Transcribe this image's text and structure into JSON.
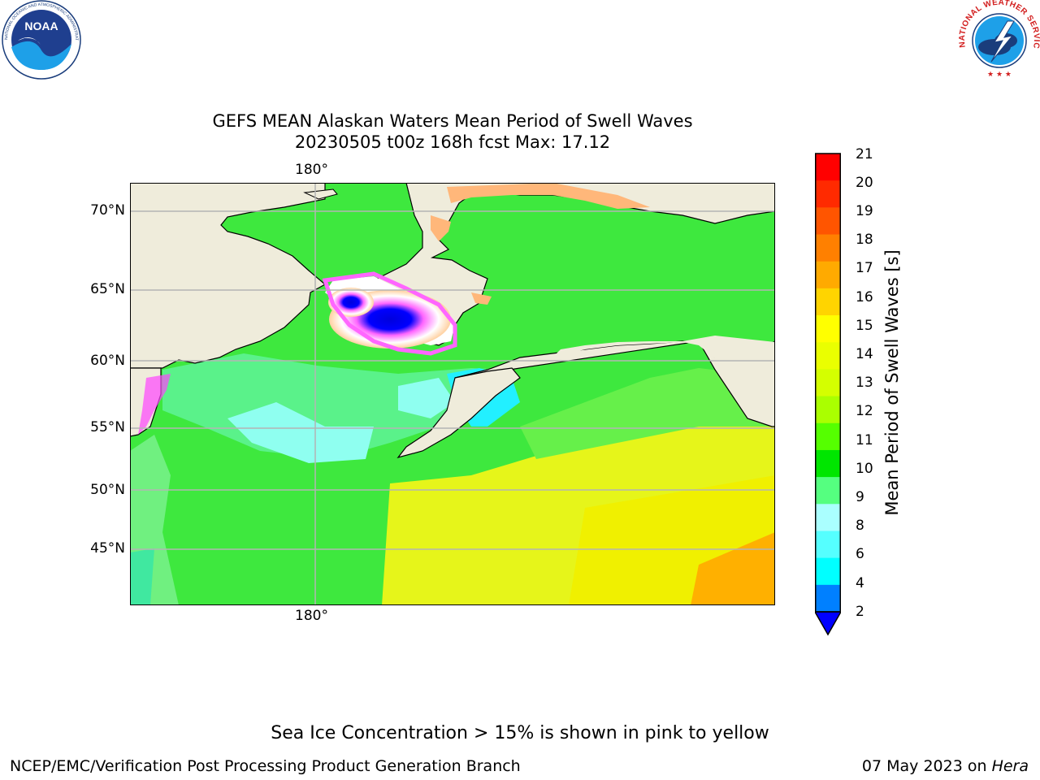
{
  "logos": {
    "noaa_text": "NOAA",
    "noaa_ring": "NATIONAL OCEANIC AND ATMOSPHERIC ADMINISTRATION · U.S. DEPARTMENT OF COMMERCE",
    "nws_ring": "NATIONAL WEATHER SERVICE"
  },
  "title": {
    "line1": "GEFS MEAN Alaskan Waters Mean Period of Swell Waves",
    "line2": "20230505 t00z 168h fcst   Max: 17.12"
  },
  "map": {
    "lon_label_top": "180°",
    "lon_label_bottom": "180°",
    "lat_labels": [
      "70°N",
      "65°N",
      "60°N",
      "55°N",
      "50°N",
      "45°N"
    ],
    "land_color": "#efecdb",
    "grid_color": "#b4b4b4"
  },
  "colorbar": {
    "label": "Mean Period of Swell Waves [s]",
    "ticks": [
      "21",
      "20",
      "19",
      "18",
      "17",
      "16",
      "15",
      "14",
      "13",
      "12",
      "11",
      "10",
      "9",
      "8",
      "6",
      "4",
      "2"
    ],
    "colors": [
      "#ff0000",
      "#ff2a00",
      "#ff5500",
      "#ff8000",
      "#ffaa00",
      "#ffd400",
      "#ffff00",
      "#eaff00",
      "#d4ff00",
      "#aaff00",
      "#55ff00",
      "#00e600",
      "#55ff80",
      "#aaffff",
      "#55ffff",
      "#00ffff",
      "#0080ff"
    ],
    "under_color": "#0000ff"
  },
  "notes": {
    "sea_ice": "Sea Ice Concentration > 15% is shown in pink to yellow"
  },
  "footer": {
    "left": "NCEP/EMC/Verification Post Processing Product Generation Branch",
    "right_date": "07 May 2023 on ",
    "right_machine": "Hera"
  }
}
